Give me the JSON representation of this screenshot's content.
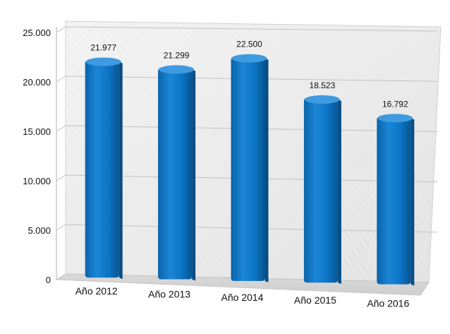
{
  "chart_data": {
    "type": "bar",
    "categories": [
      "Año 2012",
      "Año 2013",
      "Año 2014",
      "Año 2015",
      "Año 2016"
    ],
    "values": [
      21977,
      21299,
      22500,
      18523,
      16792
    ],
    "value_labels": [
      "21.977",
      "21.299",
      "22.500",
      "18.523",
      "16.792"
    ],
    "yticks": [
      0,
      5000,
      10000,
      15000,
      20000,
      25000
    ],
    "ytick_labels": [
      "0",
      "5.000",
      "10.000",
      "15.000",
      "20.000",
      "25.000"
    ],
    "ylim": [
      0,
      25000
    ],
    "grid": true,
    "legend": "none",
    "title": "",
    "xlabel": "",
    "ylabel": "",
    "bar_color": "#0b74c4",
    "bar_highlight": "#3f9ae0",
    "bar_shadow": "#084e86"
  }
}
